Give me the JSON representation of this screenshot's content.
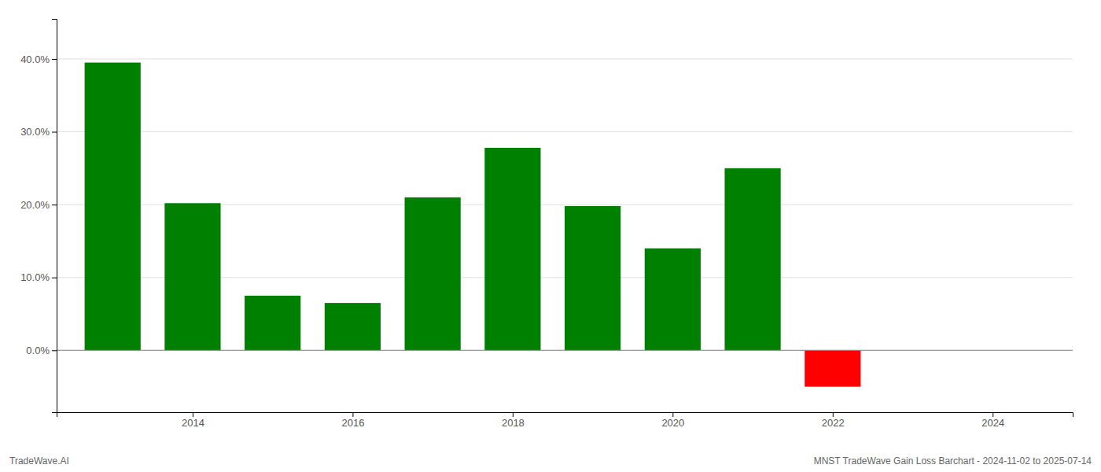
{
  "chart_data": {
    "type": "bar",
    "x": [
      2013,
      2014,
      2015,
      2016,
      2017,
      2018,
      2019,
      2020,
      2021,
      2022,
      2023
    ],
    "values": [
      0.395,
      0.202,
      0.075,
      0.065,
      0.21,
      0.278,
      0.198,
      0.14,
      0.25,
      -0.05,
      null
    ],
    "colors": [
      "#008000",
      "#008000",
      "#008000",
      "#008000",
      "#008000",
      "#008000",
      "#008000",
      "#008000",
      "#008000",
      "#ff0000",
      null
    ],
    "xlim": [
      2012.3,
      2025.0
    ],
    "xticks": [
      2014,
      2016,
      2018,
      2020,
      2022,
      2024
    ],
    "ylim": [
      -0.085,
      0.455
    ],
    "yticks": [
      {
        "value": 0.0,
        "label": "0.0%"
      },
      {
        "value": 0.1,
        "label": "10.0%"
      },
      {
        "value": 0.2,
        "label": "20.0%"
      },
      {
        "value": 0.3,
        "label": "30.0%"
      },
      {
        "value": 0.4,
        "label": "40.0%"
      }
    ],
    "grid": true,
    "annotations": [
      "TradeWave.AI",
      "MNST TradeWave Gain Loss Barchart - 2024-11-02 to 2025-07-14"
    ]
  }
}
